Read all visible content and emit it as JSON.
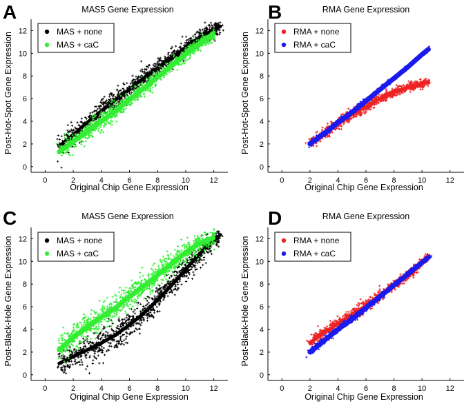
{
  "chart_data": [
    {
      "panel_label": "A",
      "type": "scatter",
      "title": "MAS5 Gene Expression",
      "xlabel": "Original Chip Gene Expression",
      "ylabel": "Post-Hot-Spot Gene Expression",
      "xlim": [
        -1,
        13
      ],
      "ylim": [
        -0.5,
        13
      ],
      "xticks": [
        "0",
        "2",
        "4",
        "6",
        "8",
        "10",
        "12"
      ],
      "yticks": [
        "0",
        "2",
        "4",
        "6",
        "8",
        "10",
        "12"
      ],
      "grid": false,
      "legend_position": "top-left",
      "series": [
        {
          "name": "MAS + none",
          "color": "#000000",
          "x": [
            1,
            2,
            3,
            4,
            5,
            6,
            7,
            8,
            9,
            10,
            11,
            12.5
          ],
          "y": [
            1.8,
            2.8,
            3.9,
            4.9,
            5.9,
            6.8,
            7.8,
            8.7,
            9.6,
            10.5,
            11.4,
            12.4
          ]
        },
        {
          "name": "MAS + caC",
          "color": "#33ee33",
          "x": [
            1,
            2,
            3,
            4,
            5,
            6,
            7,
            8,
            9,
            10,
            11,
            12
          ],
          "y": [
            1.3,
            2.2,
            3.1,
            4.0,
            4.9,
            5.9,
            6.9,
            7.9,
            8.9,
            9.9,
            10.9,
            11.7
          ]
        }
      ]
    },
    {
      "panel_label": "B",
      "type": "scatter",
      "title": "RMA Gene Expression",
      "xlabel": "Original Chip Gene Expression",
      "ylabel": "Post-Hot-Spot Gene Expression",
      "xlim": [
        -1,
        13
      ],
      "ylim": [
        -0.5,
        13
      ],
      "xticks": [
        "0",
        "2",
        "4",
        "6",
        "8",
        "10",
        "12"
      ],
      "yticks": [
        "0",
        "2",
        "4",
        "6",
        "8",
        "10",
        "12"
      ],
      "grid": false,
      "legend_position": "top-left",
      "series": [
        {
          "name": "RMA + none",
          "color": "#ee2222",
          "x": [
            2,
            3,
            4,
            5,
            6,
            7,
            8,
            9,
            10,
            10.5
          ],
          "y": [
            2.0,
            2.9,
            3.8,
            4.6,
            5.3,
            6.0,
            6.6,
            7.0,
            7.3,
            7.5
          ]
        },
        {
          "name": "RMA + caC",
          "color": "#1a1aee",
          "x": [
            2,
            3,
            4,
            5,
            6,
            7,
            8,
            9,
            10,
            10.5
          ],
          "y": [
            2.0,
            2.9,
            3.9,
            4.8,
            5.8,
            6.8,
            7.8,
            8.8,
            9.9,
            10.4
          ]
        }
      ]
    },
    {
      "panel_label": "C",
      "type": "scatter",
      "title": "MAS5 Gene Expression",
      "xlabel": "Original Chip Gene Expression",
      "ylabel": "Post-Black-Hole Gene Expression",
      "xlim": [
        -1,
        13
      ],
      "ylim": [
        -0.5,
        13
      ],
      "xticks": [
        "0",
        "2",
        "4",
        "6",
        "8",
        "10",
        "12"
      ],
      "yticks": [
        "0",
        "2",
        "4",
        "6",
        "8",
        "10",
        "12"
      ],
      "grid": false,
      "legend_position": "top-left",
      "series": [
        {
          "name": "MAS + none",
          "color": "#000000",
          "x": [
            1,
            2,
            3,
            4,
            5,
            6,
            7,
            8,
            9,
            10,
            11,
            12.5
          ],
          "y": [
            1.0,
            1.6,
            2.2,
            2.8,
            3.5,
            4.4,
            5.4,
            6.6,
            7.9,
            9.3,
            10.7,
            12.4
          ]
        },
        {
          "name": "MAS + caC",
          "color": "#33ee33",
          "x": [
            1,
            2,
            3,
            4,
            5,
            6,
            7,
            8,
            9,
            10,
            11,
            12
          ],
          "y": [
            2.2,
            3.3,
            4.2,
            5.1,
            5.9,
            6.9,
            7.8,
            8.8,
            9.8,
            10.8,
            11.6,
            12.1
          ]
        }
      ]
    },
    {
      "panel_label": "D",
      "type": "scatter",
      "title": "RMA Gene Expression",
      "xlabel": "Original Chip Gene Expression",
      "ylabel": "Post-Black-Hole Gene Expression",
      "xlim": [
        -1,
        13
      ],
      "ylim": [
        -0.5,
        13
      ],
      "xticks": [
        "0",
        "2",
        "4",
        "6",
        "8",
        "10",
        "12"
      ],
      "yticks": [
        "0",
        "2",
        "4",
        "6",
        "8",
        "10",
        "12"
      ],
      "grid": false,
      "legend_position": "top-left",
      "series": [
        {
          "name": "RMA + none",
          "color": "#ee2222",
          "x": [
            2,
            3,
            4,
            5,
            6,
            7,
            8,
            9,
            10,
            10.5
          ],
          "y": [
            2.8,
            3.7,
            4.5,
            5.3,
            6.1,
            7.0,
            7.9,
            8.8,
            9.9,
            10.5
          ]
        },
        {
          "name": "RMA + caC",
          "color": "#1a1aee",
          "x": [
            2,
            3,
            4,
            5,
            6,
            7,
            8,
            9,
            10,
            10.5
          ],
          "y": [
            2.0,
            3.0,
            4.0,
            4.9,
            5.9,
            6.9,
            7.9,
            8.9,
            9.9,
            10.4
          ]
        }
      ]
    }
  ]
}
